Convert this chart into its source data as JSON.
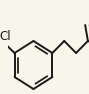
{
  "bg_color": "#f8f6eb",
  "line_color": "#1a1a1a",
  "line_width": 1.4,
  "figsize": [
    0.89,
    0.94
  ],
  "dpi": 100,
  "cl_fontsize": 8.5
}
